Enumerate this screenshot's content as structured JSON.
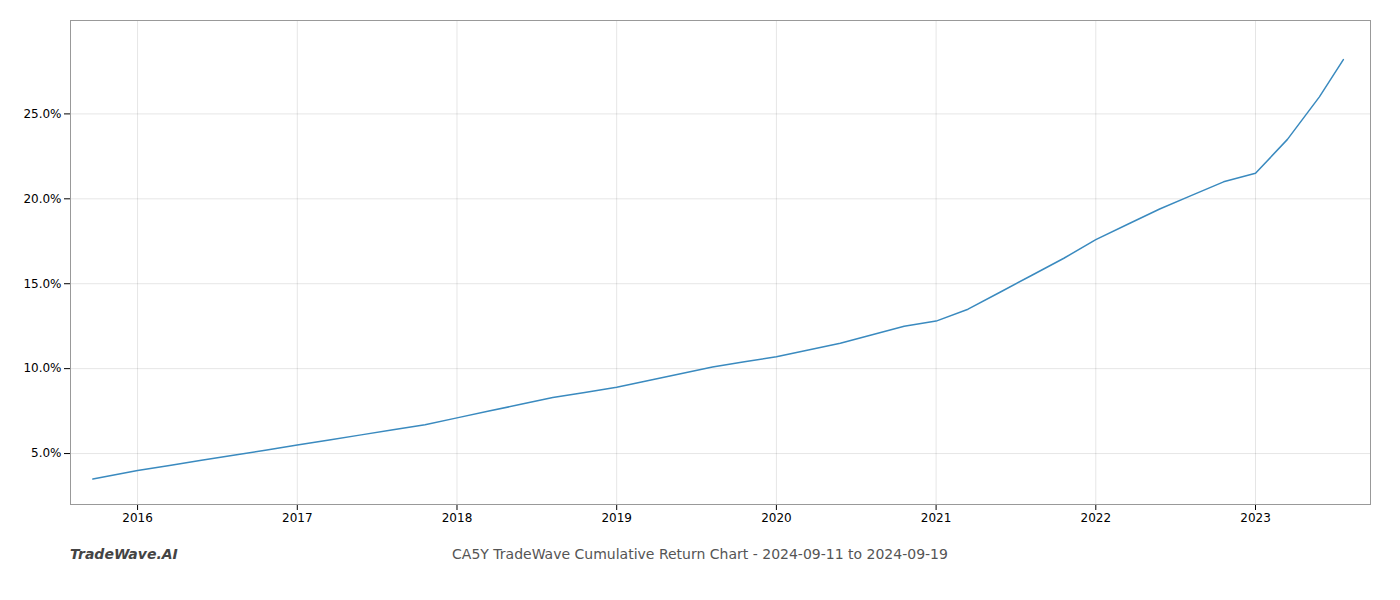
{
  "chart_data": {
    "type": "line",
    "title": "CA5Y TradeWave Cumulative Return Chart - 2024-09-11 to 2024-09-19",
    "annotations": [
      "TradeWave.AI"
    ],
    "x": [
      2015.72,
      2016.0,
      2016.2,
      2016.4,
      2016.6,
      2016.8,
      2017.0,
      2017.2,
      2017.4,
      2017.6,
      2017.8,
      2018.0,
      2018.2,
      2018.4,
      2018.6,
      2018.8,
      2019.0,
      2019.2,
      2019.4,
      2019.6,
      2019.8,
      2020.0,
      2020.2,
      2020.4,
      2020.6,
      2020.8,
      2021.0,
      2021.2,
      2021.4,
      2021.6,
      2021.8,
      2022.0,
      2022.2,
      2022.4,
      2022.6,
      2022.8,
      2023.0,
      2023.2,
      2023.4,
      2023.55
    ],
    "values": [
      3.5,
      4.0,
      4.3,
      4.6,
      4.9,
      5.2,
      5.5,
      5.8,
      6.1,
      6.4,
      6.7,
      7.1,
      7.5,
      7.9,
      8.3,
      8.6,
      8.9,
      9.3,
      9.7,
      10.1,
      10.4,
      10.7,
      11.1,
      11.5,
      12.0,
      12.5,
      12.8,
      13.5,
      14.5,
      15.5,
      16.5,
      17.6,
      18.5,
      19.4,
      20.2,
      21.0,
      21.5,
      23.5,
      26.0,
      28.2
    ],
    "color": "#3a8abf",
    "xlim": [
      2015.58,
      2023.72
    ],
    "xticks": [
      2016,
      2017,
      2018,
      2019,
      2020,
      2021,
      2022,
      2023
    ],
    "ylim": [
      2.0,
      30.5
    ],
    "yticks": [
      {
        "value": 5.0,
        "label": "5.0%"
      },
      {
        "value": 10.0,
        "label": "10.0%"
      },
      {
        "value": 15.0,
        "label": "15.0%"
      },
      {
        "value": 20.0,
        "label": "20.0%"
      },
      {
        "value": 25.0,
        "label": "25.0%"
      }
    ],
    "grid": true
  }
}
